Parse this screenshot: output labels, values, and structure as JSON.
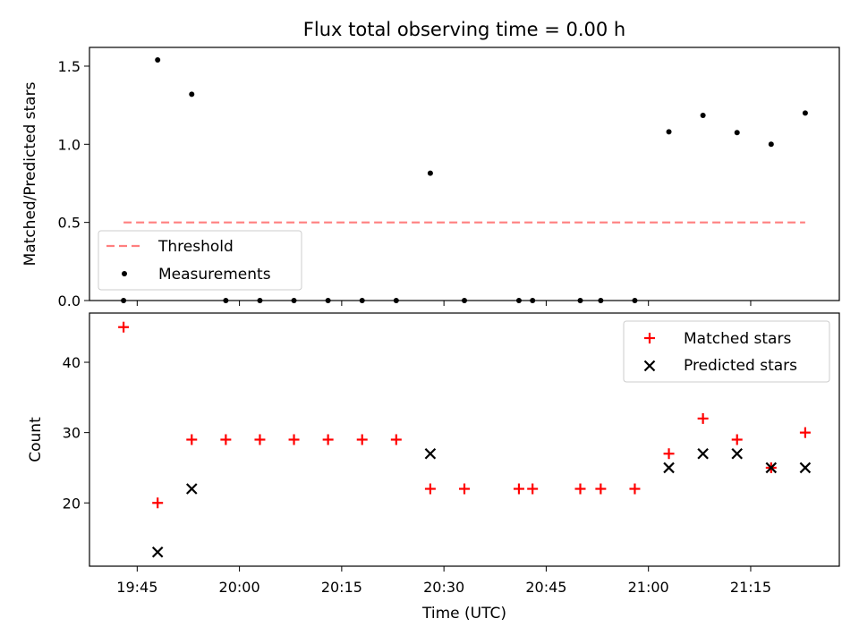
{
  "chart_data": [
    {
      "type": "scatter",
      "title": "Flux total observing time = 0.00 h",
      "xlabel": "",
      "ylabel": "Matched/Predicted stars",
      "xlim": [
        "19:38",
        "21:28"
      ],
      "ylim": [
        0,
        1.62
      ],
      "yticks": [
        0.0,
        0.5,
        1.0,
        1.5
      ],
      "ytick_labels": [
        "0.0",
        "0.5",
        "1.0",
        "1.5"
      ],
      "legend_position": "lower-left",
      "series": [
        {
          "name": "Threshold",
          "kind": "line",
          "style": "dashed",
          "color": "#ff7f7f",
          "points": [
            [
              "19:43",
              0.5
            ],
            [
              "21:23",
              0.5
            ]
          ]
        },
        {
          "name": "Measurements",
          "kind": "points",
          "marker": "dot",
          "color": "#000000",
          "points": [
            [
              "19:43",
              0.0
            ],
            [
              "19:48",
              1.54
            ],
            [
              "19:53",
              1.32
            ],
            [
              "19:58",
              0.0
            ],
            [
              "20:03",
              0.0
            ],
            [
              "20:08",
              0.0
            ],
            [
              "20:13",
              0.0
            ],
            [
              "20:18",
              0.0
            ],
            [
              "20:23",
              0.0
            ],
            [
              "20:28",
              0.815
            ],
            [
              "20:33",
              0.0
            ],
            [
              "20:41",
              0.0
            ],
            [
              "20:43",
              0.0
            ],
            [
              "20:50",
              0.0
            ],
            [
              "20:53",
              0.0
            ],
            [
              "20:58",
              0.0
            ],
            [
              "21:03",
              1.08
            ],
            [
              "21:08",
              1.185
            ],
            [
              "21:13",
              1.075
            ],
            [
              "21:18",
              1.0
            ],
            [
              "21:23",
              1.2
            ]
          ]
        }
      ]
    },
    {
      "type": "scatter",
      "title": "",
      "xlabel": "Time (UTC)",
      "ylabel": "Count",
      "xlim": [
        "19:38",
        "21:28"
      ],
      "ylim": [
        11,
        47
      ],
      "yticks": [
        20,
        30,
        40
      ],
      "ytick_labels": [
        "20",
        "30",
        "40"
      ],
      "xticks": [
        "19:45",
        "20:00",
        "20:15",
        "20:30",
        "20:45",
        "21:00",
        "21:15"
      ],
      "legend_position": "top-right",
      "series": [
        {
          "name": "Matched stars",
          "kind": "points",
          "marker": "plus",
          "color": "#ff0000",
          "points": [
            [
              "19:43",
              45
            ],
            [
              "19:48",
              20
            ],
            [
              "19:53",
              29
            ],
            [
              "19:58",
              29
            ],
            [
              "20:03",
              29
            ],
            [
              "20:08",
              29
            ],
            [
              "20:13",
              29
            ],
            [
              "20:18",
              29
            ],
            [
              "20:23",
              29
            ],
            [
              "20:28",
              22
            ],
            [
              "20:33",
              22
            ],
            [
              "20:41",
              22
            ],
            [
              "20:43",
              22
            ],
            [
              "20:50",
              22
            ],
            [
              "20:53",
              22
            ],
            [
              "20:58",
              22
            ],
            [
              "21:03",
              27
            ],
            [
              "21:08",
              32
            ],
            [
              "21:13",
              29
            ],
            [
              "21:18",
              25
            ],
            [
              "21:23",
              30
            ]
          ]
        },
        {
          "name": "Predicted stars",
          "kind": "points",
          "marker": "x",
          "color": "#000000",
          "points": [
            [
              "19:48",
              13
            ],
            [
              "19:53",
              22
            ],
            [
              "20:28",
              27
            ],
            [
              "21:03",
              25
            ],
            [
              "21:08",
              27
            ],
            [
              "21:13",
              27
            ],
            [
              "21:18",
              25
            ],
            [
              "21:23",
              25
            ]
          ]
        }
      ]
    }
  ]
}
